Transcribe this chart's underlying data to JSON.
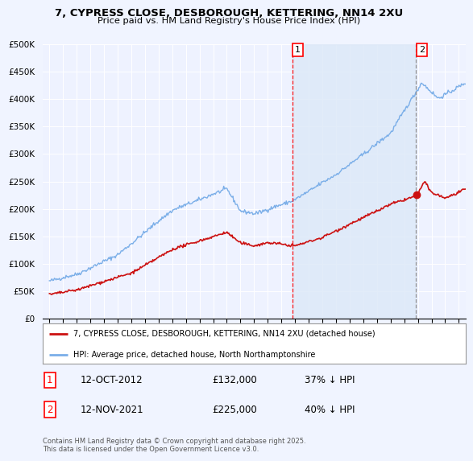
{
  "title": "7, CYPRESS CLOSE, DESBOROUGH, KETTERING, NN14 2XU",
  "subtitle": "Price paid vs. HM Land Registry's House Price Index (HPI)",
  "background_color": "#f0f4ff",
  "plot_bg_color": "#eef2ff",
  "ylabel": "",
  "xlabel": "",
  "ylim": [
    0,
    500000
  ],
  "yticks": [
    0,
    50000,
    100000,
    150000,
    200000,
    250000,
    300000,
    350000,
    400000,
    450000,
    500000
  ],
  "ytick_labels": [
    "£0",
    "£50K",
    "£100K",
    "£150K",
    "£200K",
    "£250K",
    "£300K",
    "£350K",
    "£400K",
    "£450K",
    "£500K"
  ],
  "xlim_start": 1994.5,
  "xlim_end": 2025.5,
  "hpi_color": "#7aaee8",
  "hpi_fill_color": "#dce8f8",
  "price_color": "#cc1111",
  "marker1_x": 2012.79,
  "marker1_y": 132000,
  "marker2_x": 2021.87,
  "marker2_y": 225000,
  "marker1_label": "1",
  "marker2_label": "2",
  "shade_color": "#dce8f8",
  "annotation1_date": "12-OCT-2012",
  "annotation1_price": "£132,000",
  "annotation1_pct": "37% ↓ HPI",
  "annotation2_date": "12-NOV-2021",
  "annotation2_price": "£225,000",
  "annotation2_pct": "40% ↓ HPI",
  "legend_line1": "7, CYPRESS CLOSE, DESBOROUGH, KETTERING, NN14 2XU (detached house)",
  "legend_line2": "HPI: Average price, detached house, North Northamptonshire",
  "footer": "Contains HM Land Registry data © Crown copyright and database right 2025.\nThis data is licensed under the Open Government Licence v3.0.",
  "xticks": [
    1995,
    1996,
    1997,
    1998,
    1999,
    2000,
    2001,
    2002,
    2003,
    2004,
    2005,
    2006,
    2007,
    2008,
    2009,
    2010,
    2011,
    2012,
    2013,
    2014,
    2015,
    2016,
    2017,
    2018,
    2019,
    2020,
    2021,
    2022,
    2023,
    2024,
    2025
  ]
}
